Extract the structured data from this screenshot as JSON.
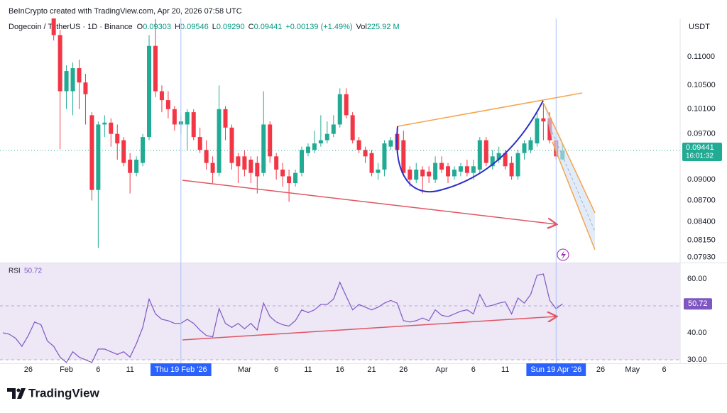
{
  "header": {
    "credit": "BeInCrypto created with TradingView.com, Apr 20, 2026 07:58 UTC",
    "ohlc": [
      {
        "key": "O",
        "value": "0.09303"
      },
      {
        "key": "H",
        "value": "0.09546"
      },
      {
        "key": "L",
        "value": "0.09290"
      },
      {
        "key": "C",
        "value": "0.09441"
      }
    ],
    "change": "+0.00139 (+1.49%)",
    "volume_key": "Vol",
    "volume": "225.92 M"
  },
  "footer": {
    "brand": "TradingView"
  },
  "chart_data": [
    {
      "type": "candlestick",
      "title": "Dogecoin / TetherUS · 1D · Binance",
      "currency": "USDT",
      "countdown": "16:01:32",
      "log_scale": true,
      "grid": false,
      "up_color": "#22ab94",
      "down_color": "#f23645",
      "xlim": [
        "2026-01-22",
        "2026-05-08"
      ],
      "ylim": [
        0.0786,
        0.1166
      ],
      "yticks": [
        {
          "value": 0.11,
          "label": "0.11000"
        },
        {
          "value": 0.105,
          "label": "0.10500"
        },
        {
          "value": 0.101,
          "label": "0.10100"
        },
        {
          "value": 0.097,
          "label": "0.09700"
        },
        {
          "value": 0.09,
          "label": "0.09000"
        },
        {
          "value": 0.087,
          "label": "0.08700"
        },
        {
          "value": 0.084,
          "label": "0.08400"
        },
        {
          "value": 0.0815,
          "label": "0.08150"
        },
        {
          "value": 0.0793,
          "label": "0.07930"
        }
      ],
      "x": [
        "2026-01-30",
        "2026-01-31",
        "2026-02-01",
        "2026-02-02",
        "2026-02-03",
        "2026-02-04",
        "2026-02-05",
        "2026-02-06",
        "2026-02-07",
        "2026-02-08",
        "2026-02-09",
        "2026-02-10",
        "2026-02-11",
        "2026-02-12",
        "2026-02-13",
        "2026-02-14",
        "2026-02-15",
        "2026-02-16",
        "2026-02-17",
        "2026-02-18",
        "2026-02-19",
        "2026-02-20",
        "2026-02-21",
        "2026-02-22",
        "2026-02-23",
        "2026-02-24",
        "2026-02-25",
        "2026-02-26",
        "2026-02-27",
        "2026-02-28",
        "2026-03-01",
        "2026-03-02",
        "2026-03-03",
        "2026-03-04",
        "2026-03-05",
        "2026-03-06",
        "2026-03-07",
        "2026-03-08",
        "2026-03-09",
        "2026-03-10",
        "2026-03-11",
        "2026-03-12",
        "2026-03-13",
        "2026-03-14",
        "2026-03-15",
        "2026-03-16",
        "2026-03-17",
        "2026-03-18",
        "2026-03-19",
        "2026-03-20",
        "2026-03-21",
        "2026-03-22",
        "2026-03-23",
        "2026-03-24",
        "2026-03-25",
        "2026-03-26",
        "2026-03-27",
        "2026-03-28",
        "2026-03-29",
        "2026-03-30",
        "2026-03-31",
        "2026-04-01",
        "2026-04-02",
        "2026-04-03",
        "2026-04-04",
        "2026-04-05",
        "2026-04-06",
        "2026-04-07",
        "2026-04-08",
        "2026-04-09",
        "2026-04-10",
        "2026-04-11",
        "2026-04-12",
        "2026-04-13",
        "2026-04-14",
        "2026-04-15",
        "2026-04-16",
        "2026-04-17",
        "2026-04-18",
        "2026-04-19",
        "2026-04-20"
      ],
      "open": [
        0.1175,
        0.114,
        0.104,
        0.104,
        0.108,
        0.1055,
        0.1,
        0.0885,
        0.0985,
        0.0988,
        0.097,
        0.096,
        0.093,
        0.091,
        0.0925,
        0.0965,
        0.112,
        0.104,
        0.1025,
        0.101,
        0.0985,
        0.0985,
        0.1005,
        0.0965,
        0.0945,
        0.0925,
        0.091,
        0.101,
        0.098,
        0.0935,
        0.0935,
        0.093,
        0.0925,
        0.091,
        0.0985,
        0.0935,
        0.0915,
        0.0905,
        0.0895,
        0.091,
        0.094,
        0.0945,
        0.0955,
        0.096,
        0.097,
        0.0985,
        0.1035,
        0.1,
        0.096,
        0.0945,
        0.094,
        0.091,
        0.0915,
        0.095,
        0.097,
        0.096,
        0.0915,
        0.09,
        0.0915,
        0.0912,
        0.09,
        0.0925,
        0.092,
        0.0905,
        0.0912,
        0.092,
        0.091,
        0.0915,
        0.096,
        0.092,
        0.093,
        0.094,
        0.0925,
        0.0905,
        0.094,
        0.0945,
        0.0955,
        0.0995,
        0.0995,
        0.096,
        0.09303
      ],
      "high": [
        0.1185,
        0.115,
        0.1085,
        0.109,
        0.1095,
        0.107,
        0.1005,
        0.099,
        0.1,
        0.0995,
        0.0985,
        0.0965,
        0.094,
        0.0935,
        0.097,
        0.114,
        0.117,
        0.105,
        0.104,
        0.1015,
        0.1,
        0.101,
        0.101,
        0.098,
        0.096,
        0.0935,
        0.105,
        0.1015,
        0.0985,
        0.094,
        0.0945,
        0.0935,
        0.0935,
        0.104,
        0.099,
        0.094,
        0.0925,
        0.0915,
        0.0915,
        0.095,
        0.0955,
        0.0975,
        0.1,
        0.099,
        0.1,
        0.1045,
        0.1045,
        0.1005,
        0.0965,
        0.095,
        0.0945,
        0.0925,
        0.096,
        0.0965,
        0.098,
        0.0975,
        0.092,
        0.0925,
        0.092,
        0.092,
        0.0935,
        0.0935,
        0.0925,
        0.092,
        0.0925,
        0.093,
        0.093,
        0.0965,
        0.0965,
        0.0945,
        0.095,
        0.0945,
        0.0935,
        0.0945,
        0.096,
        0.0965,
        0.1005,
        0.102,
        0.1005,
        0.0965,
        0.09546
      ],
      "low": [
        0.113,
        0.0946,
        0.101,
        0.1,
        0.101,
        0.0985,
        0.087,
        0.0805,
        0.0965,
        0.095,
        0.093,
        0.092,
        0.088,
        0.0905,
        0.092,
        0.096,
        0.103,
        0.1005,
        0.0995,
        0.0975,
        0.097,
        0.0945,
        0.096,
        0.094,
        0.0915,
        0.0895,
        0.0905,
        0.096,
        0.0915,
        0.0895,
        0.0905,
        0.0895,
        0.088,
        0.0905,
        0.0925,
        0.09,
        0.089,
        0.0868,
        0.089,
        0.0905,
        0.0935,
        0.094,
        0.095,
        0.0955,
        0.0965,
        0.098,
        0.0995,
        0.0955,
        0.094,
        0.0925,
        0.0905,
        0.09,
        0.0905,
        0.0945,
        0.094,
        0.0905,
        0.089,
        0.0895,
        0.088,
        0.0895,
        0.0895,
        0.091,
        0.0895,
        0.09,
        0.0905,
        0.0905,
        0.09,
        0.091,
        0.092,
        0.0915,
        0.0925,
        0.0915,
        0.09,
        0.09,
        0.093,
        0.094,
        0.095,
        0.096,
        0.0955,
        0.093,
        0.0929
      ],
      "close": [
        0.114,
        0.104,
        0.1075,
        0.108,
        0.1055,
        0.1035,
        0.0885,
        0.0985,
        0.0988,
        0.097,
        0.0955,
        0.0925,
        0.091,
        0.093,
        0.0965,
        0.112,
        0.104,
        0.1025,
        0.101,
        0.0985,
        0.099,
        0.1005,
        0.0965,
        0.0945,
        0.0925,
        0.091,
        0.101,
        0.098,
        0.0925,
        0.092,
        0.0915,
        0.091,
        0.0905,
        0.0985,
        0.0935,
        0.0915,
        0.0905,
        0.0895,
        0.091,
        0.0945,
        0.095,
        0.0955,
        0.096,
        0.097,
        0.0985,
        0.1035,
        0.1,
        0.096,
        0.0945,
        0.0935,
        0.091,
        0.0915,
        0.0955,
        0.096,
        0.0945,
        0.091,
        0.09,
        0.0915,
        0.0905,
        0.0905,
        0.0925,
        0.0915,
        0.0905,
        0.0915,
        0.092,
        0.091,
        0.092,
        0.096,
        0.0925,
        0.0935,
        0.094,
        0.092,
        0.0905,
        0.094,
        0.0955,
        0.096,
        0.0995,
        0.099,
        0.096,
        0.0935,
        0.09441
      ]
    },
    {
      "type": "line",
      "grid": false,
      "band": [
        30,
        70
      ],
      "midline": 50,
      "band_color": "#ede7f6",
      "xlim": [
        "2026-01-22",
        "2026-05-08"
      ],
      "ylim": [
        28.7,
        65.5
      ],
      "yticks": [
        {
          "value": 60,
          "label": "60.00"
        },
        {
          "value": 40,
          "label": "40.00"
        },
        {
          "value": 30,
          "label": "30.00"
        }
      ],
      "xticks": [
        {
          "value": "2026-01-26",
          "label": "26"
        },
        {
          "value": "2026-02-01",
          "label": "Feb"
        },
        {
          "value": "2026-02-06",
          "label": "6"
        },
        {
          "value": "2026-02-11",
          "label": "11"
        },
        {
          "value": "2026-03-01",
          "label": "Mar"
        },
        {
          "value": "2026-03-06",
          "label": "6"
        },
        {
          "value": "2026-03-11",
          "label": "11"
        },
        {
          "value": "2026-03-16",
          "label": "16"
        },
        {
          "value": "2026-03-21",
          "label": "21"
        },
        {
          "value": "2026-03-26",
          "label": "26"
        },
        {
          "value": "2026-04-01",
          "label": "Apr"
        },
        {
          "value": "2026-04-06",
          "label": "6"
        },
        {
          "value": "2026-04-11",
          "label": "11"
        },
        {
          "value": "2026-04-26",
          "label": "26"
        },
        {
          "value": "2026-05-01",
          "label": "May"
        },
        {
          "value": "2026-05-06",
          "label": "6"
        }
      ],
      "crosshair_dates": [
        {
          "value": "2026-02-19",
          "label": "Thu 19 Feb '26"
        },
        {
          "value": "2026-04-19",
          "label": "Sun 19 Apr '26"
        }
      ],
      "x": [
        "2026-01-22",
        "2026-01-23",
        "2026-01-24",
        "2026-01-25",
        "2026-01-26",
        "2026-01-27",
        "2026-01-28",
        "2026-01-29",
        "2026-01-30",
        "2026-01-31",
        "2026-02-01",
        "2026-02-02",
        "2026-02-03",
        "2026-02-04",
        "2026-02-05",
        "2026-02-06",
        "2026-02-07",
        "2026-02-08",
        "2026-02-09",
        "2026-02-10",
        "2026-02-11",
        "2026-02-12",
        "2026-02-13",
        "2026-02-14",
        "2026-02-15",
        "2026-02-16",
        "2026-02-17",
        "2026-02-18",
        "2026-02-19",
        "2026-02-20",
        "2026-02-21",
        "2026-02-22",
        "2026-02-23",
        "2026-02-24",
        "2026-02-25",
        "2026-02-26",
        "2026-02-27",
        "2026-02-28",
        "2026-03-01",
        "2026-03-02",
        "2026-03-03",
        "2026-03-04",
        "2026-03-05",
        "2026-03-06",
        "2026-03-07",
        "2026-03-08",
        "2026-03-09",
        "2026-03-10",
        "2026-03-11",
        "2026-03-12",
        "2026-03-13",
        "2026-03-14",
        "2026-03-15",
        "2026-03-16",
        "2026-03-17",
        "2026-03-18",
        "2026-03-19",
        "2026-03-20",
        "2026-03-21",
        "2026-03-22",
        "2026-03-23",
        "2026-03-24",
        "2026-03-25",
        "2026-03-26",
        "2026-03-27",
        "2026-03-28",
        "2026-03-29",
        "2026-03-30",
        "2026-03-31",
        "2026-04-01",
        "2026-04-02",
        "2026-04-03",
        "2026-04-04",
        "2026-04-05",
        "2026-04-06",
        "2026-04-07",
        "2026-04-08",
        "2026-04-09",
        "2026-04-10",
        "2026-04-11",
        "2026-04-12",
        "2026-04-13",
        "2026-04-14",
        "2026-04-15",
        "2026-04-16",
        "2026-04-17",
        "2026-04-18",
        "2026-04-19",
        "2026-04-20"
      ],
      "series": [
        {
          "name": "RSI",
          "color": "#7e57c2",
          "values": [
            40,
            39.5,
            38,
            35,
            39,
            44,
            43,
            37,
            35,
            31,
            29,
            33,
            31,
            30,
            29,
            34,
            34,
            33,
            32,
            33,
            31,
            36,
            42,
            52.5,
            47,
            45,
            44.5,
            43.5,
            43.5,
            45,
            43.5,
            41,
            39,
            38.5,
            49,
            43.5,
            42,
            43.5,
            41.5,
            43.5,
            41,
            51,
            46,
            44,
            43,
            42.5,
            44.5,
            48.5,
            47.5,
            48.5,
            50.5,
            50.5,
            52.5,
            58.7,
            53.5,
            48.5,
            50.5,
            49.5,
            48.5,
            49.5,
            51,
            52,
            51,
            44.5,
            44,
            44.5,
            45.5,
            44.5,
            48.5,
            46.5,
            46,
            47,
            48,
            48.5,
            47,
            54.2,
            49.7,
            50.2,
            51,
            51.5,
            47,
            52.9,
            51,
            54.2,
            61.3,
            61.8,
            52,
            48.9,
            50.72
          ]
        }
      ]
    }
  ]
}
